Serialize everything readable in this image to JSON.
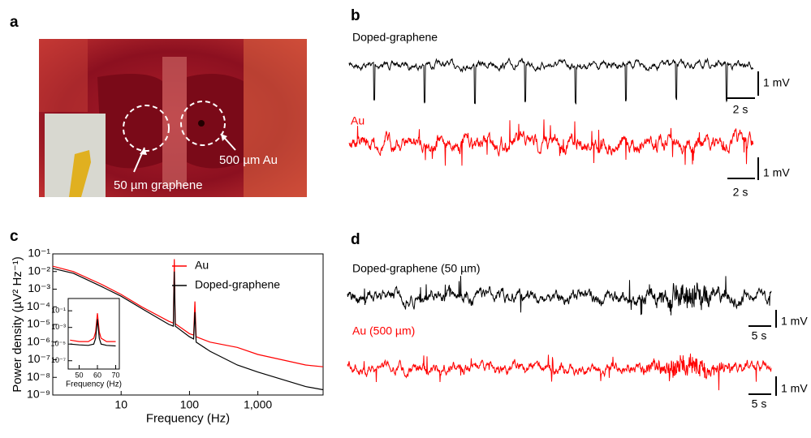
{
  "panel_a": {
    "label": "a",
    "annotations": [
      "50 µm graphene",
      "500 µm Au"
    ]
  },
  "panel_b": {
    "label": "b",
    "traces": [
      {
        "name": "Doped-graphene",
        "scale_v": "1 mV",
        "scale_h": "2 s"
      },
      {
        "name": "Au",
        "scale_v": "1 mV",
        "scale_h": "2 s"
      }
    ]
  },
  "panel_c": {
    "label": "c"
  },
  "panel_d": {
    "label": "d",
    "traces": [
      {
        "name": "Doped-graphene (50 µm)",
        "scale_v": "1 mV",
        "scale_h": "5 s"
      },
      {
        "name": "Au (500 µm)",
        "scale_v": "1 mV",
        "scale_h": "5 s"
      }
    ]
  },
  "chart_data": [
    {
      "type": "line",
      "xlabel": "Frequency (Hz)",
      "ylabel": "Power density (µV² Hz⁻¹)",
      "log_x": true,
      "log_y": true,
      "legend": "upper right",
      "xlim": [
        1,
        9000
      ],
      "ylim": [
        1e-09,
        0.1
      ],
      "xticks": [
        10,
        100,
        {
          "value": 1000,
          "label": "1,000"
        }
      ],
      "yticks": [
        {
          "value": 1e-09,
          "label": "10⁻⁹"
        },
        {
          "value": 1e-08,
          "label": "10⁻⁸"
        },
        {
          "value": 1e-07,
          "label": "10⁻⁷"
        },
        {
          "value": 1e-06,
          "label": "10⁻⁶"
        },
        {
          "value": 1e-05,
          "label": "10⁻⁵"
        },
        {
          "value": 0.0001,
          "label": "10⁻⁴"
        },
        {
          "value": 0.001,
          "label": "10⁻³"
        },
        {
          "value": 0.01,
          "label": "10⁻²"
        },
        {
          "value": 0.1,
          "label": "10⁻¹"
        }
      ],
      "x": [
        1,
        2,
        5,
        10,
        20,
        50,
        58,
        60,
        62,
        100,
        115,
        120,
        125,
        200,
        500,
        1000,
        5000,
        9000
      ],
      "series": [
        {
          "name": "Au",
          "color": "#ff0000",
          "values": [
            0.02,
            0.01,
            0.002,
            0.0005,
            0.0001,
            1.5e-05,
            1.2e-05,
            0.05,
            1.1e-05,
            3e-06,
            2.5e-06,
            0.0002,
            2e-06,
            1e-06,
            5e-07,
            2e-07,
            5e-08,
            4e-08
          ]
        },
        {
          "name": "Doped-graphene",
          "color": "#000000",
          "values": [
            0.015,
            0.008,
            0.0015,
            0.0004,
            8e-05,
            1e-05,
            8e-06,
            0.01,
            8e-06,
            2e-06,
            1.5e-06,
            5e-05,
            1e-06,
            3e-07,
            5e-08,
            2e-08,
            3e-09,
            2e-09
          ]
        }
      ]
    },
    {
      "type": "line",
      "xlabel": "Frequency (Hz)",
      "log_y": true,
      "xlim": [
        44,
        72
      ],
      "ylim": [
        1e-08,
        3
      ],
      "xticks": [
        50,
        60,
        70
      ],
      "yticks": [
        {
          "value": 0.1,
          "label": "10⁻¹"
        },
        {
          "value": 0.001,
          "label": "10⁻³"
        },
        {
          "value": 1e-05,
          "label": "10⁻⁵"
        },
        {
          "value": 1e-07,
          "label": "10⁻⁷"
        }
      ],
      "x": [
        45,
        50,
        55,
        58,
        59,
        60,
        61,
        62,
        65,
        70
      ],
      "series": [
        {
          "name": "Au",
          "color": "#ff0000",
          "values": [
            3e-05,
            2e-05,
            2e-05,
            5e-05,
            0.0003,
            0.05,
            0.0003,
            5e-05,
            2e-05,
            2e-05
          ]
        },
        {
          "name": "Doped-graphene",
          "color": "#000000",
          "values": [
            1e-05,
            8e-06,
            7e-06,
            1e-05,
            5e-05,
            0.01,
            5e-05,
            1e-05,
            7e-06,
            6e-06
          ]
        }
      ]
    }
  ]
}
